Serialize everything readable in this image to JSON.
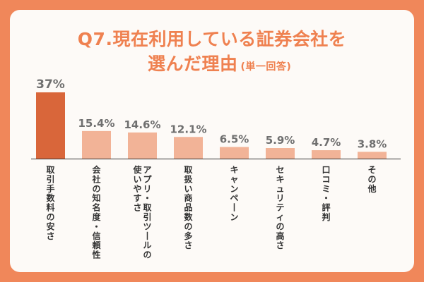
{
  "title": {
    "line1": "Q7.現在利用している証券会社を",
    "line2": "選んだ理由",
    "note": "(単一回答)"
  },
  "colors": {
    "background": "#f0875a",
    "card": "#fdfaf7",
    "title": "#ef8150",
    "bar_highlight": "#d9663a",
    "bar": "#f2b397",
    "value_text": "#6f6f6f",
    "category_text": "#333333"
  },
  "chart_data": {
    "type": "bar",
    "title": "Q7.現在利用している証券会社を選んだ理由",
    "subtitle": "(単一回答)",
    "unit": "%",
    "ylim": [
      0,
      40
    ],
    "grid": false,
    "categories": [
      [
        "取引手数料の安さ"
      ],
      [
        "会社の知名度・信頼性"
      ],
      [
        "アプリ・取引ツールの",
        "使いやすさ"
      ],
      [
        "取扱い商品数の多さ"
      ],
      [
        "キャンペーン"
      ],
      [
        "セキュリティの高さ"
      ],
      [
        "口コミ・評判"
      ],
      [
        "その他"
      ]
    ],
    "values": [
      37,
      15.4,
      14.6,
      12.1,
      6.5,
      5.9,
      4.7,
      3.8
    ],
    "value_labels": [
      "37%",
      "15.4%",
      "14.6%",
      "12.1%",
      "6.5%",
      "5.9%",
      "4.7%",
      "3.8%"
    ],
    "highlight_index": 0
  }
}
